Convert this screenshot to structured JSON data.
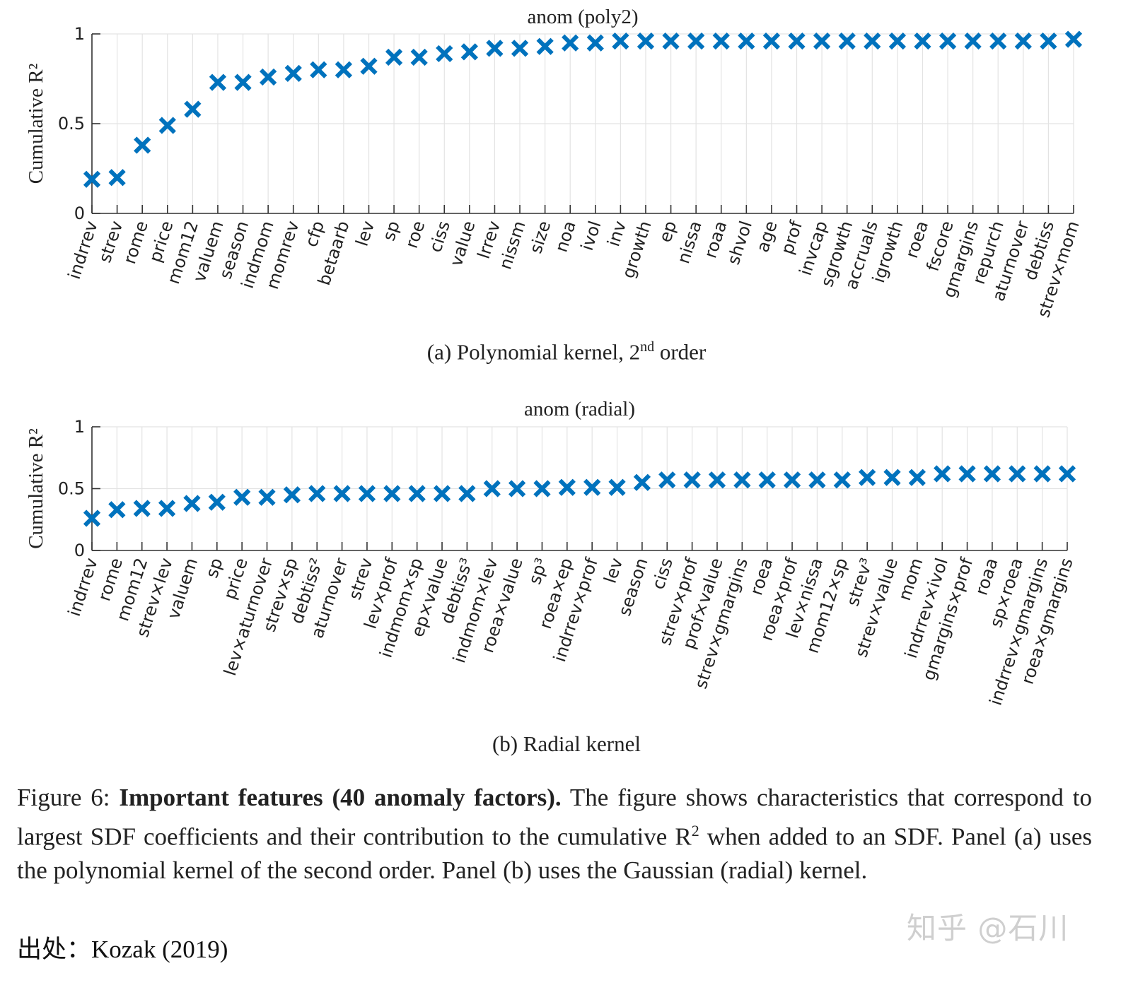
{
  "chart_data": [
    {
      "type": "scatter",
      "title": "anom (poly2)",
      "ylabel": "Cumulative R²",
      "ylim": [
        0,
        1
      ],
      "yticks": [
        "0",
        "0.5",
        "1"
      ],
      "grid": true,
      "marker": "x",
      "color": "#0072BD",
      "categories": [
        "indrrev",
        "strev",
        "rome",
        "price",
        "mom12",
        "valuem",
        "season",
        "indmom",
        "momrev",
        "cfp",
        "betaarb",
        "lev",
        "sp",
        "roe",
        "ciss",
        "value",
        "lrrev",
        "nissm",
        "size",
        "noa",
        "ivol",
        "inv",
        "growth",
        "ep",
        "nissa",
        "roaa",
        "shvol",
        "age",
        "prof",
        "invcap",
        "sgrowth",
        "accruals",
        "igrowth",
        "roea",
        "fscore",
        "gmargins",
        "repurch",
        "aturnover",
        "debtiss",
        "strev×mom"
      ],
      "values": [
        0.19,
        0.2,
        0.38,
        0.49,
        0.58,
        0.73,
        0.73,
        0.76,
        0.78,
        0.8,
        0.8,
        0.82,
        0.87,
        0.87,
        0.89,
        0.9,
        0.92,
        0.92,
        0.93,
        0.95,
        0.95,
        0.96,
        0.96,
        0.96,
        0.96,
        0.96,
        0.96,
        0.96,
        0.96,
        0.96,
        0.96,
        0.96,
        0.96,
        0.96,
        0.96,
        0.96,
        0.96,
        0.96,
        0.96,
        0.97
      ]
    },
    {
      "type": "scatter",
      "title": "anom (radial)",
      "ylabel": "Cumulative R²",
      "ylim": [
        0,
        1
      ],
      "yticks": [
        "0",
        "0.5",
        "1"
      ],
      "grid": true,
      "marker": "x",
      "color": "#0072BD",
      "categories": [
        "indrrev",
        "rome",
        "mom12",
        "strev×lev",
        "valuem",
        "sp",
        "price",
        "lev×aturnover",
        "strev×sp",
        "debtiss²",
        "aturnover",
        "strev",
        "lev×prof",
        "indmom×sp",
        "ep×value",
        "debtiss³",
        "indmom×lev",
        "roea×value",
        "sp³",
        "roea×ep",
        "indrrev×prof",
        "lev",
        "season",
        "ciss",
        "strev×prof",
        "prof×value",
        "strev×gmargins",
        "roea",
        "roea×prof",
        "lev×nissa",
        "mom12×sp",
        "strev³",
        "strev×value",
        "mom",
        "indrrev×ivol",
        "gmargins×prof",
        "roaa",
        "sp×roea",
        "indrrev×gmargins",
        "roea×gmargins"
      ],
      "values": [
        0.26,
        0.33,
        0.34,
        0.34,
        0.38,
        0.39,
        0.43,
        0.43,
        0.45,
        0.46,
        0.46,
        0.46,
        0.46,
        0.46,
        0.46,
        0.46,
        0.5,
        0.5,
        0.5,
        0.51,
        0.51,
        0.51,
        0.55,
        0.57,
        0.57,
        0.57,
        0.57,
        0.57,
        0.57,
        0.57,
        0.57,
        0.59,
        0.59,
        0.59,
        0.62,
        0.62,
        0.62,
        0.62,
        0.62,
        0.62
      ]
    }
  ],
  "subcaptions": {
    "a_prefix": "(a) Polynomial kernel, 2",
    "a_sup": "nd",
    "a_suffix": " order",
    "b": "(b) Radial kernel"
  },
  "caption": {
    "label": "Figure 6: ",
    "bold": "Important features (40 anomaly factors).",
    "text_1": " The figure shows characteristics that correspond to largest SDF coefficients and their contribution to the cumulative R",
    "sup": "2",
    "text_2": " when added to an SDF. Panel (a) uses the polynomial kernel of the second order. Panel (b) uses the Gaussian (radial) kernel."
  },
  "source": "出处：Kozak (2019)",
  "watermark": "知乎 @石川"
}
